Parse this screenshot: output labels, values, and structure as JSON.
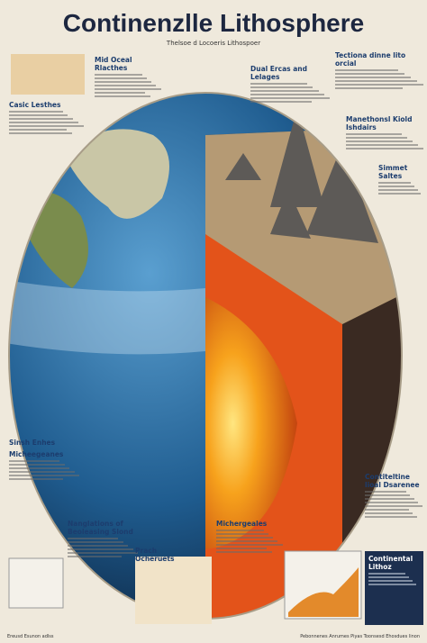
{
  "header": {
    "title": "Continenzlle Lithosphere",
    "subtitle": "Thelsoe d Locoeris Lithospoer"
  },
  "callouts": [
    {
      "heading": "Mid Oceal Rlacthes"
    },
    {
      "heading": "Dual Ercas and Lelages"
    },
    {
      "heading": "Tectiona dinne lito orcial"
    },
    {
      "heading": "Casic Lesthes"
    },
    {
      "heading": "Manethonsl Kiold Ishdairs"
    },
    {
      "heading": "Simmet Saltes"
    },
    {
      "heading": "Sinsh Enhes"
    },
    {
      "heading": "Micheegeanes"
    },
    {
      "heading": "Nanglations of Beoleasing Slond"
    },
    {
      "heading": "Prach Ocheruets"
    },
    {
      "heading": "Michergeales"
    },
    {
      "heading": "Contiteltine lioal Dsarenee"
    },
    {
      "heading": "Continental Lithoz"
    }
  ],
  "footer": {
    "left": "Ereusd Esunon adlss",
    "right": "Pebonnenes Anrumes Piyas Toonsesd Ehosdues linon"
  }
}
